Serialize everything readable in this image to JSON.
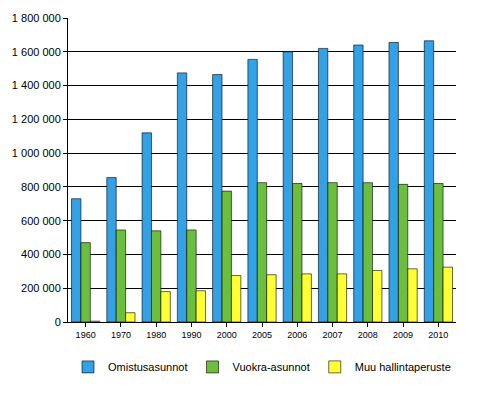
{
  "chart_data": {
    "type": "bar",
    "categories": [
      "1960",
      "1970",
      "1980",
      "1990",
      "2000",
      "2005",
      "2006",
      "2007",
      "2008",
      "2009",
      "2010"
    ],
    "series": [
      {
        "name": "Omistusasunnot",
        "color": "#33a1e6",
        "values": [
          730000,
          855000,
          1120000,
          1475000,
          1465000,
          1555000,
          1600000,
          1620000,
          1640000,
          1655000,
          1665000
        ]
      },
      {
        "name": "Vuokra-asunnot",
        "color": "#6cbf3c",
        "values": [
          470000,
          545000,
          540000,
          545000,
          775000,
          825000,
          820000,
          825000,
          825000,
          815000,
          820000
        ]
      },
      {
        "name": "Muu hallintaperuste",
        "color": "#ffff33",
        "values": [
          5000,
          55000,
          180000,
          185000,
          275000,
          280000,
          285000,
          285000,
          305000,
          315000,
          325000
        ]
      }
    ],
    "ylim": [
      0,
      1800000
    ],
    "yticks": [
      0,
      {
        "value": 200000,
        "label": "200 000"
      },
      {
        "value": 400000,
        "label": "400 000"
      },
      {
        "value": 600000,
        "label": "600 000"
      },
      {
        "value": 800000,
        "label": "800 000"
      },
      {
        "value": 1000000,
        "label": "1 000 000"
      },
      {
        "value": 1200000,
        "label": "1 200 000"
      },
      {
        "value": 1400000,
        "label": "1 400 000"
      },
      {
        "value": 1600000,
        "label": "1 600 000"
      },
      {
        "value": 1800000,
        "label": "1 800 000"
      }
    ],
    "grid": true,
    "legend": "bottom"
  }
}
